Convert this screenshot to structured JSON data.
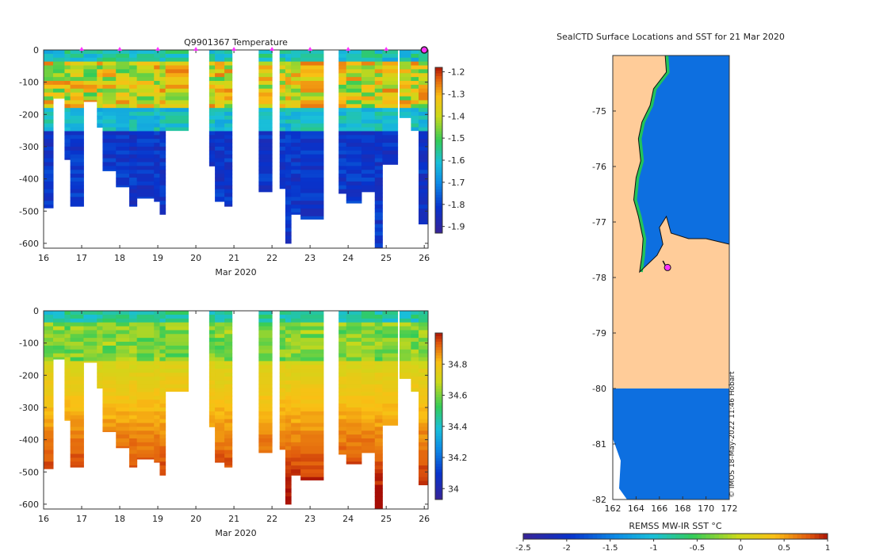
{
  "chart_data": [
    {
      "type": "heatmap",
      "title": "Q9901367  Temperature",
      "xlabel": "Mar 2020",
      "ylabel": "",
      "xlim": [
        16,
        26.1
      ],
      "ylim": [
        -615,
        0
      ],
      "x_ticks": [
        16,
        17,
        18,
        19,
        20,
        21,
        22,
        23,
        24,
        25,
        26
      ],
      "y_ticks": [
        0,
        -100,
        -200,
        -300,
        -400,
        -500,
        -600
      ],
      "colorbar": {
        "min": -1.93,
        "max": -1.18,
        "ticks": [
          -1.2,
          -1.3,
          -1.4,
          -1.5,
          -1.6,
          -1.7,
          -1.8,
          -1.9
        ]
      },
      "surface_markers_day": [
        17,
        18,
        19,
        20,
        21,
        22,
        23,
        24,
        25,
        26
      ],
      "profiles": [
        {
          "start": 16.0,
          "end": 16.25,
          "max_depth": 490
        },
        {
          "start": 16.25,
          "end": 16.55,
          "max_depth": 150
        },
        {
          "start": 16.55,
          "end": 16.7,
          "max_depth": 340
        },
        {
          "start": 16.7,
          "end": 17.05,
          "max_depth": 485
        },
        {
          "start": 17.05,
          "end": 17.4,
          "max_depth": 160
        },
        {
          "start": 17.4,
          "end": 17.55,
          "max_depth": 240
        },
        {
          "start": 17.55,
          "end": 17.9,
          "max_depth": 375
        },
        {
          "start": 17.9,
          "end": 18.25,
          "max_depth": 425
        },
        {
          "start": 18.25,
          "end": 18.45,
          "max_depth": 485
        },
        {
          "start": 18.45,
          "end": 18.9,
          "max_depth": 460
        },
        {
          "start": 18.9,
          "end": 19.05,
          "max_depth": 470
        },
        {
          "start": 19.05,
          "end": 19.2,
          "max_depth": 510
        },
        {
          "start": 19.2,
          "end": 19.8,
          "max_depth": 250
        },
        {
          "start": 20.35,
          "end": 20.5,
          "max_depth": 360
        },
        {
          "start": 20.5,
          "end": 20.75,
          "max_depth": 470
        },
        {
          "start": 20.75,
          "end": 20.95,
          "max_depth": 485
        },
        {
          "start": 21.65,
          "end": 22.0,
          "max_depth": 440
        },
        {
          "start": 22.2,
          "end": 22.35,
          "max_depth": 430
        },
        {
          "start": 22.35,
          "end": 22.5,
          "max_depth": 600
        },
        {
          "start": 22.5,
          "end": 22.75,
          "max_depth": 510
        },
        {
          "start": 22.75,
          "end": 23.35,
          "max_depth": 525
        },
        {
          "start": 23.75,
          "end": 23.95,
          "max_depth": 445
        },
        {
          "start": 23.95,
          "end": 24.35,
          "max_depth": 475
        },
        {
          "start": 24.35,
          "end": 24.7,
          "max_depth": 440
        },
        {
          "start": 24.7,
          "end": 24.9,
          "max_depth": 615
        },
        {
          "start": 24.9,
          "end": 25.3,
          "max_depth": 355
        },
        {
          "start": 25.35,
          "end": 25.65,
          "max_depth": 210
        },
        {
          "start": 25.65,
          "end": 25.85,
          "max_depth": 250
        },
        {
          "start": 25.85,
          "end": 26.1,
          "max_depth": 540
        }
      ]
    },
    {
      "type": "heatmap",
      "title": "",
      "xlabel": "Mar 2020",
      "ylabel": "",
      "xlim": [
        16,
        26.1
      ],
      "ylim": [
        -615,
        0
      ],
      "x_ticks": [
        16,
        17,
        18,
        19,
        20,
        21,
        22,
        23,
        24,
        25,
        26
      ],
      "y_ticks": [
        0,
        -100,
        -200,
        -300,
        -400,
        -500,
        -600
      ],
      "colorbar": {
        "min": 33.93,
        "max": 35.0,
        "ticks": [
          34.8,
          34.6,
          34.4,
          34.2,
          34
        ]
      }
    },
    {
      "type": "map",
      "title": "SealCTD Surface Locations and SST for 21 Mar 2020",
      "lon_ticks": [
        162,
        164,
        166,
        168,
        170,
        172
      ],
      "lat_ticks": [
        -75,
        -76,
        -77,
        -78,
        -79,
        -80,
        -81,
        -82
      ],
      "lon_range": [
        162,
        172
      ],
      "lat_range": [
        -82,
        -74.0
      ],
      "colorbar_label": "REMSS MW-IR SST °C",
      "colorbar_ticks": [
        -2.5,
        -2,
        -1.5,
        -1,
        -0.5,
        0,
        0.5,
        1
      ],
      "colorbar_range": [
        -2.5,
        1
      ],
      "credit": "© IMOS 18-May-2022 11:46 Hobart",
      "seal_position": {
        "lon": 166.7,
        "lat": -77.82
      }
    }
  ],
  "colors": {
    "land": "#FFCC99",
    "ocean_cold": "#0D6FE0",
    "marker": "#FF33FF",
    "axis": "#333333"
  }
}
